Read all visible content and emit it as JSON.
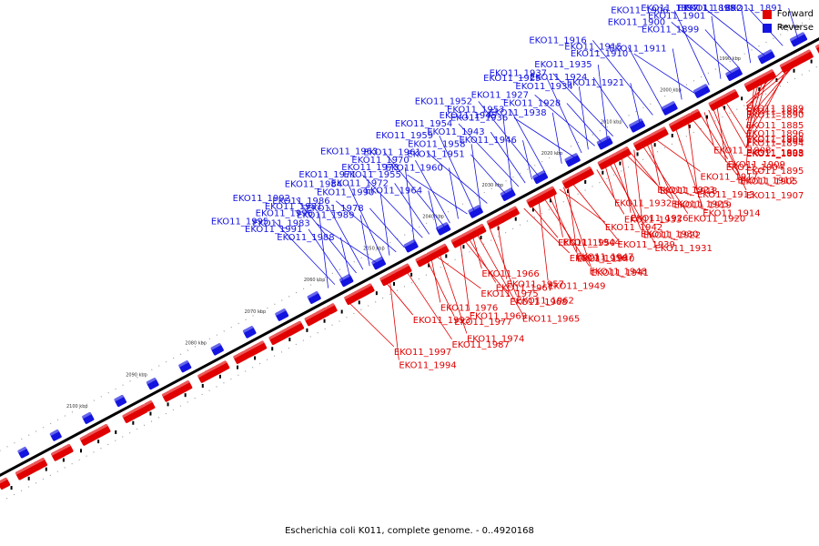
{
  "legend": [
    {
      "label": "Forward",
      "color": "#e00000"
    },
    {
      "label": "Reverse",
      "color": "#1414e0"
    }
  ],
  "caption": "Escherichia coli K011, complete genome. - 0..4920168",
  "colors": {
    "forward": "#e00000",
    "reverse": "#1414e0",
    "backbone": "#000000"
  },
  "ticks": [
    "1980 kbp",
    "1990 kbp",
    "2000 kbp",
    "2010 kbp",
    "2020 kbp",
    "2030 kbp",
    "2040 kbp",
    "2050 kbp",
    "2060 kbp",
    "2070 kbp",
    "2080 kbp",
    "2090 kbp",
    "2100 kbp"
  ],
  "reverse_genes": [
    {
      "label": "EKO11_1891",
      "pos": 0.975
    },
    {
      "label": "EKO11_1892",
      "pos": 0.957
    },
    {
      "label": "EKO11_1897",
      "pos": 0.935
    },
    {
      "label": "EKO11_1898",
      "pos": 0.918
    },
    {
      "label": "EKO11_1899",
      "pos": 0.905
    },
    {
      "label": "EKO11_1900",
      "pos": 0.895
    },
    {
      "label": "EKO11_1901",
      "pos": 0.882
    },
    {
      "label": "EKO11_1906",
      "pos": 0.868
    },
    {
      "label": "EKO11_1910",
      "pos": 0.85
    },
    {
      "label": "EKO11_1911",
      "pos": 0.835
    },
    {
      "label": "EKO11_1915",
      "pos": 0.812
    },
    {
      "label": "EKO11_1916",
      "pos": 0.8
    },
    {
      "label": "EKO11_1921",
      "pos": 0.784
    },
    {
      "label": "EKO11_1924",
      "pos": 0.77
    },
    {
      "label": "EKO11_1937",
      "pos": 0.752
    },
    {
      "label": "EKO11_1935",
      "pos": 0.745
    },
    {
      "label": "EKO11_1928",
      "pos": 0.738
    },
    {
      "label": "EKO11_1927",
      "pos": 0.73
    },
    {
      "label": "EKO11_1934",
      "pos": 0.722
    },
    {
      "label": "EKO11_1929",
      "pos": 0.714
    },
    {
      "label": "EKO11_1936",
      "pos": 0.705
    },
    {
      "label": "EKO11_1938",
      "pos": 0.69
    },
    {
      "label": "EKO11_1953",
      "pos": 0.67
    },
    {
      "label": "EKO11_1952",
      "pos": 0.662
    },
    {
      "label": "EKO11_1946",
      "pos": 0.654
    },
    {
      "label": "EKO11_1943",
      "pos": 0.646
    },
    {
      "label": "EKO11_1954",
      "pos": 0.638
    },
    {
      "label": "EKO11_1945",
      "pos": 0.63
    },
    {
      "label": "EKO11_1951",
      "pos": 0.622
    },
    {
      "label": "EKO11_1961",
      "pos": 0.6
    },
    {
      "label": "EKO11_1958",
      "pos": 0.592
    },
    {
      "label": "EKO11_1959",
      "pos": 0.584
    },
    {
      "label": "EKO11_1955",
      "pos": 0.576
    },
    {
      "label": "EKO11_1960",
      "pos": 0.565
    },
    {
      "label": "EKO11_1970",
      "pos": 0.555
    },
    {
      "label": "EKO11_1963",
      "pos": 0.548
    },
    {
      "label": "EKO11_1964",
      "pos": 0.54
    },
    {
      "label": "EKO11_1972",
      "pos": 0.53
    },
    {
      "label": "EKO11_1971",
      "pos": 0.522
    },
    {
      "label": "EKO11_1973",
      "pos": 0.512
    },
    {
      "label": "EKO11_1978",
      "pos": 0.5
    },
    {
      "label": "EKO11_1986",
      "pos": 0.49
    },
    {
      "label": "EKO11_1990",
      "pos": 0.482
    },
    {
      "label": "EKO11_1984",
      "pos": 0.474
    },
    {
      "label": "EKO11_1983",
      "pos": 0.466
    },
    {
      "label": "EKO11_1989",
      "pos": 0.458
    },
    {
      "label": "EKO11_1981",
      "pos": 0.45
    },
    {
      "label": "EKO11_1992",
      "pos": 0.442
    },
    {
      "label": "EKO11_1988",
      "pos": 0.434
    },
    {
      "label": "EKO11_1991",
      "pos": 0.426
    },
    {
      "label": "EKO11_1995",
      "pos": 0.416
    },
    {
      "label": "EKO11_1996",
      "pos": 0.408
    }
  ],
  "forward_genes": [
    {
      "label": "EKO11_1890",
      "pos": 0.93
    },
    {
      "label": "EKO11_1884",
      "pos": 0.965
    },
    {
      "label": "EKO11_1885",
      "pos": 0.96
    },
    {
      "label": "EKO11_1886",
      "pos": 0.955
    },
    {
      "label": "EKO11_1888",
      "pos": 0.95
    },
    {
      "label": "EKO11_1889",
      "pos": 0.945
    },
    {
      "label": "EKO11_1896",
      "pos": 0.915
    },
    {
      "label": "EKO11_1894",
      "pos": 0.92
    },
    {
      "label": "EKO11_1893",
      "pos": 0.925
    },
    {
      "label": "EKO11_1895",
      "pos": 0.91
    },
    {
      "label": "EKO11_1902",
      "pos": 0.875
    },
    {
      "label": "EKO11_1903",
      "pos": 0.87
    },
    {
      "label": "EKO11_1904",
      "pos": 0.865
    },
    {
      "label": "EKO11_1905",
      "pos": 0.86
    },
    {
      "label": "EKO11_1907",
      "pos": 0.855
    },
    {
      "label": "EKO11_1908",
      "pos": 0.85
    },
    {
      "label": "EKO11_1909",
      "pos": 0.845
    },
    {
      "label": "EKO11_1912",
      "pos": 0.835
    },
    {
      "label": "EKO11_1913",
      "pos": 0.83
    },
    {
      "label": "EKO11_1914",
      "pos": 0.815
    },
    {
      "label": "EKO11_1917",
      "pos": 0.79
    },
    {
      "label": "EKO11_1918",
      "pos": 0.785
    },
    {
      "label": "EKO11_1919",
      "pos": 0.78
    },
    {
      "label": "EKO11_1920",
      "pos": 0.775
    },
    {
      "label": "EKO11_1922",
      "pos": 0.765
    },
    {
      "label": "EKO11_1923",
      "pos": 0.76
    },
    {
      "label": "EKO11_1925",
      "pos": 0.755
    },
    {
      "label": "EKO11_1926",
      "pos": 0.75
    },
    {
      "label": "EKO11_1930",
      "pos": 0.74
    },
    {
      "label": "EKO11_1931",
      "pos": 0.735
    },
    {
      "label": "EKO11_1932",
      "pos": 0.73
    },
    {
      "label": "EKO11_1933",
      "pos": 0.72
    },
    {
      "label": "EKO11_1939",
      "pos": 0.69
    },
    {
      "label": "EKO11_1940",
      "pos": 0.685
    },
    {
      "label": "EKO11_1941",
      "pos": 0.68
    },
    {
      "label": "EKO11_1942",
      "pos": 0.675
    },
    {
      "label": "EKO11_1944",
      "pos": 0.668
    },
    {
      "label": "EKO11_1947",
      "pos": 0.662
    },
    {
      "label": "EKO11_1948",
      "pos": 0.656
    },
    {
      "label": "EKO11_1949",
      "pos": 0.65
    },
    {
      "label": "EKO11_1950",
      "pos": 0.64
    },
    {
      "label": "EKO11_1956",
      "pos": 0.632
    },
    {
      "label": "EKO11_1957",
      "pos": 0.6
    },
    {
      "label": "EKO11_1962",
      "pos": 0.59
    },
    {
      "label": "EKO11_1965",
      "pos": 0.575
    },
    {
      "label": "EKO11_1966",
      "pos": 0.57
    },
    {
      "label": "EKO11_1967",
      "pos": 0.565
    },
    {
      "label": "EKO11_1968",
      "pos": 0.56
    },
    {
      "label": "EKO11_1969",
      "pos": 0.555
    },
    {
      "label": "EKO11_1974",
      "pos": 0.53
    },
    {
      "label": "EKO11_1975",
      "pos": 0.525
    },
    {
      "label": "EKO11_1976",
      "pos": 0.52
    },
    {
      "label": "EKO11_1977",
      "pos": 0.515
    },
    {
      "label": "EKO11_1987",
      "pos": 0.49
    },
    {
      "label": "EKO11_1994",
      "pos": 0.47
    },
    {
      "label": "EKO11_1993",
      "pos": 0.465
    },
    {
      "label": "EKO11_1997",
      "pos": 0.42
    }
  ]
}
